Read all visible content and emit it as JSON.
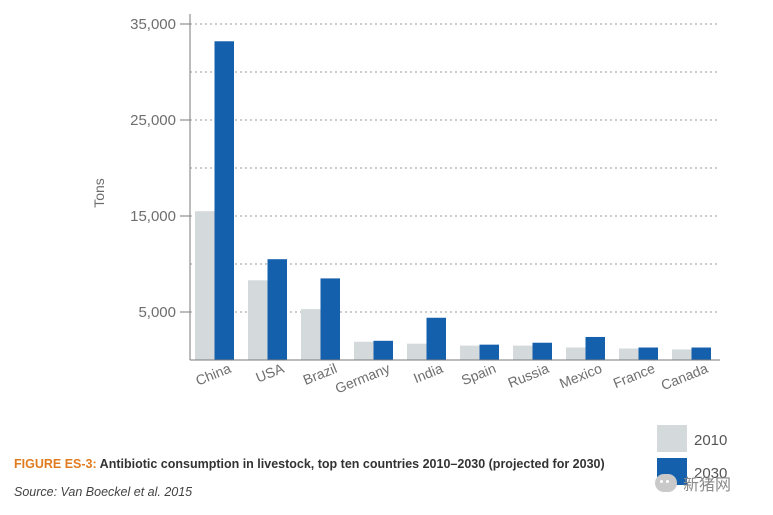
{
  "chart_data": {
    "type": "bar",
    "title": "Antibiotic consumption in livestock, top ten countries 2010–2030 (projected for 2030)",
    "ylabel": "Tons",
    "xlabel": "",
    "ylim": [
      0,
      35000
    ],
    "yticks": [
      5000,
      15000,
      25000,
      35000
    ],
    "ytick_labels": [
      "5,000",
      "15,000",
      "25,000",
      "35,000"
    ],
    "gridlines": [
      10000,
      20000,
      30000
    ],
    "categories": [
      "China",
      "USA",
      "Brazil",
      "Germany",
      "India",
      "Spain",
      "Russia",
      "Mexico",
      "France",
      "Canada"
    ],
    "series": [
      {
        "name": "2010",
        "color": "#d4d9dc",
        "values": [
          15500,
          8300,
          5300,
          1900,
          1700,
          1500,
          1500,
          1300,
          1200,
          1100
        ]
      },
      {
        "name": "2030",
        "color": "#1460ad",
        "values": [
          33200,
          10500,
          8500,
          2000,
          4400,
          1600,
          1800,
          2400,
          1300,
          1300
        ]
      }
    ],
    "legend_position": "bottom-right"
  },
  "caption": {
    "label": "FIGURE ES-3:",
    "text": "Antibiotic consumption in livestock, top ten countries 2010–2030 (projected for 2030)"
  },
  "source": "Source: Van Boeckel et al. 2015",
  "watermark": "新猪网"
}
